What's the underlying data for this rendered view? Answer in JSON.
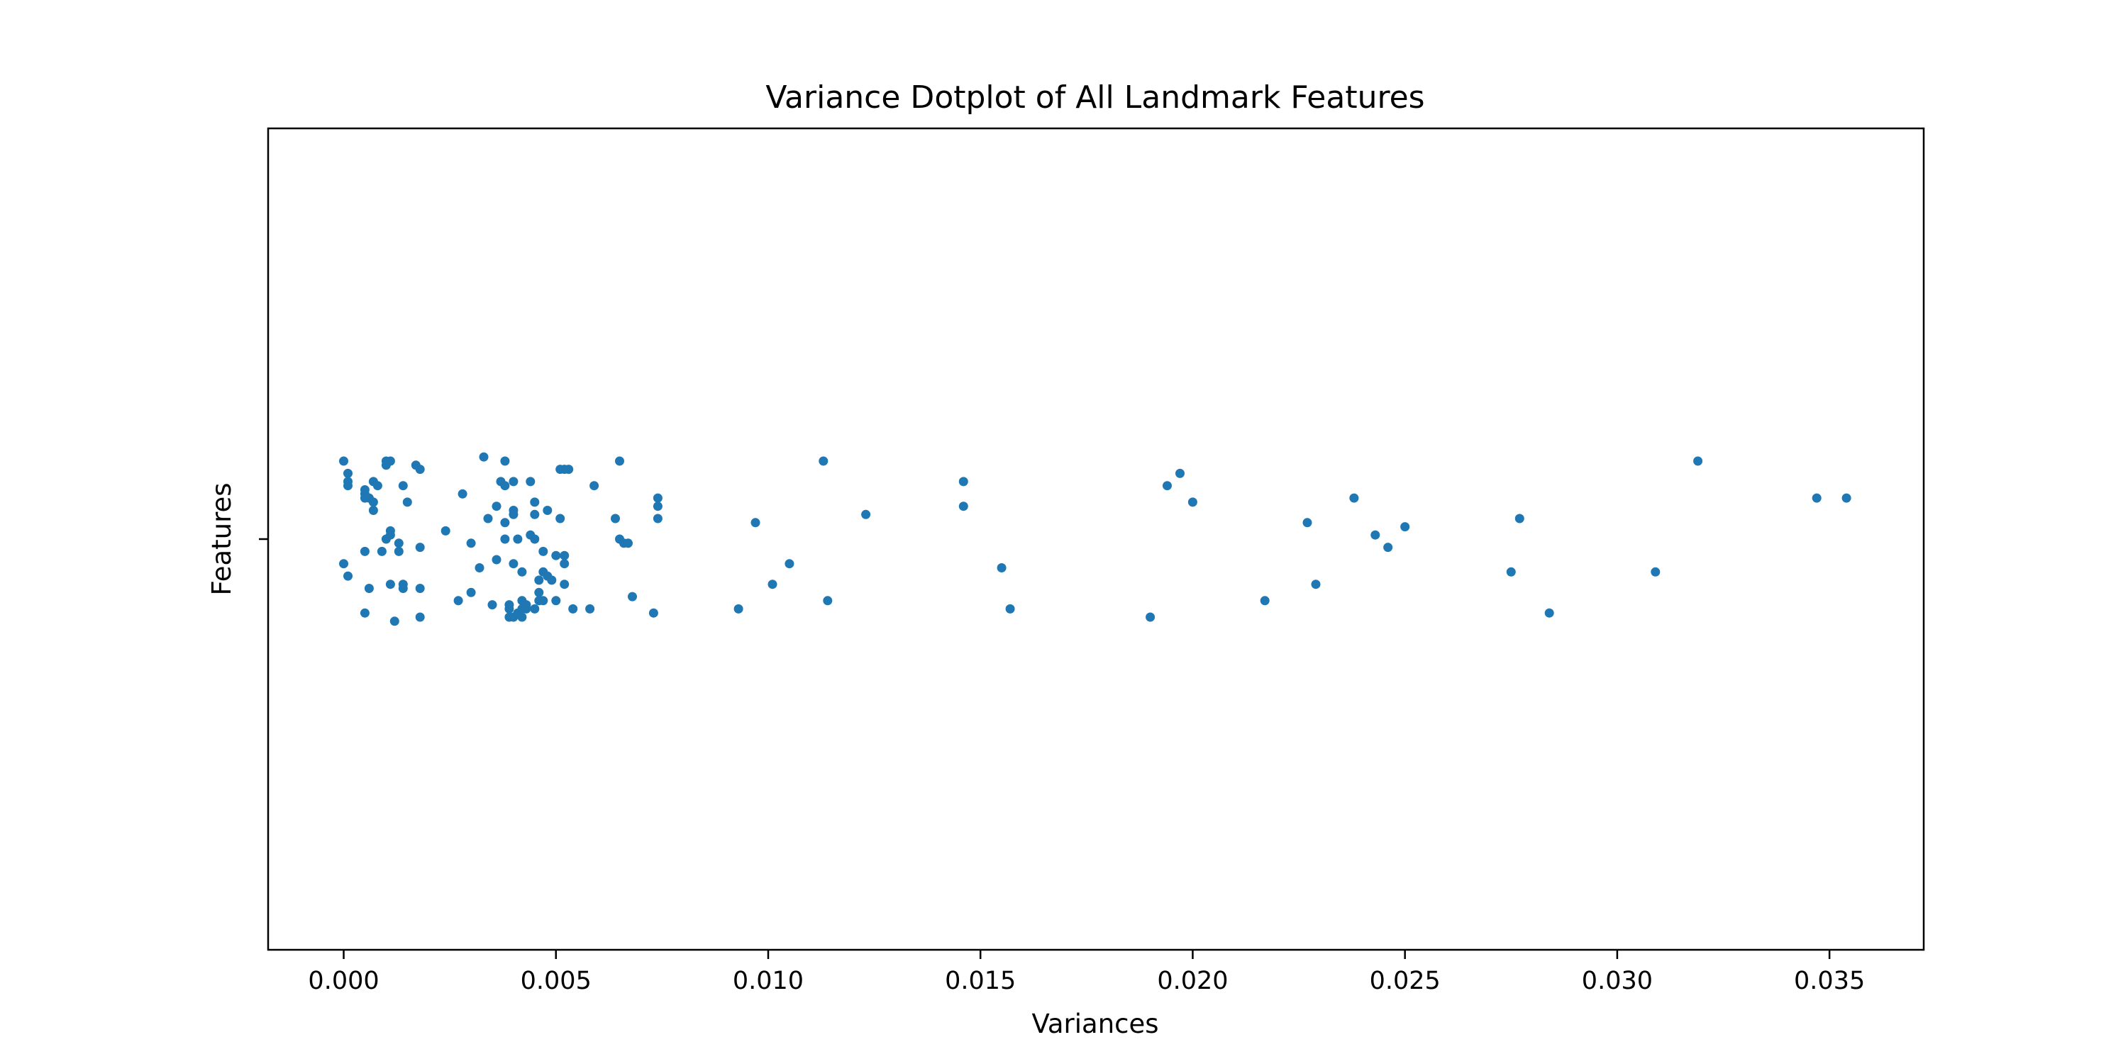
{
  "chart_data": {
    "type": "scatter",
    "title": "Variance Dotplot of All Landmark Features",
    "xlabel": "Variances",
    "ylabel": "Features",
    "xlim": [
      -0.00178,
      0.03722
    ],
    "xticks": [
      0.0,
      0.005,
      0.01,
      0.015,
      0.02,
      0.025,
      0.03,
      0.035
    ],
    "xtick_labels": [
      "0.000",
      "0.005",
      "0.010",
      "0.015",
      "0.020",
      "0.025",
      "0.030",
      "0.035"
    ],
    "ylim": [
      -1,
      1
    ],
    "yticks": [
      0
    ],
    "ytick_labels": [
      ""
    ],
    "grid": false,
    "legend": "none",
    "color": "#1f77b4",
    "points": [
      {
        "x": 0.0,
        "y": 0.19
      },
      {
        "x": 0.0001,
        "y": 0.16
      },
      {
        "x": 0.0001,
        "y": 0.14
      },
      {
        "x": 0.0001,
        "y": 0.13
      },
      {
        "x": 0.0005,
        "y": 0.12
      },
      {
        "x": 0.0005,
        "y": 0.11
      },
      {
        "x": 0.0005,
        "y": 0.1
      },
      {
        "x": 0.0006,
        "y": 0.1
      },
      {
        "x": 0.0007,
        "y": 0.09
      },
      {
        "x": 0.0007,
        "y": 0.07
      },
      {
        "x": 0.0007,
        "y": 0.14
      },
      {
        "x": 0.0008,
        "y": 0.13
      },
      {
        "x": 0.001,
        "y": 0.19
      },
      {
        "x": 0.0011,
        "y": 0.19
      },
      {
        "x": 0.001,
        "y": 0.18
      },
      {
        "x": 0.0011,
        "y": 0.02
      },
      {
        "x": 0.0011,
        "y": 0.01
      },
      {
        "x": 0.001,
        "y": 0.0
      },
      {
        "x": 0.0013,
        "y": -0.01
      },
      {
        "x": 0.0013,
        "y": -0.03
      },
      {
        "x": 0.0009,
        "y": -0.03
      },
      {
        "x": 0.0005,
        "y": -0.03
      },
      {
        "x": 0.0,
        "y": -0.06
      },
      {
        "x": 0.0001,
        "y": -0.09
      },
      {
        "x": 0.0006,
        "y": -0.12
      },
      {
        "x": 0.0011,
        "y": -0.11
      },
      {
        "x": 0.0014,
        "y": -0.12
      },
      {
        "x": 0.0014,
        "y": -0.11
      },
      {
        "x": 0.0018,
        "y": -0.12
      },
      {
        "x": 0.0018,
        "y": -0.02
      },
      {
        "x": 0.0005,
        "y": -0.18
      },
      {
        "x": 0.0012,
        "y": -0.2
      },
      {
        "x": 0.0018,
        "y": -0.19
      },
      {
        "x": 0.0014,
        "y": 0.13
      },
      {
        "x": 0.0015,
        "y": 0.09
      },
      {
        "x": 0.0017,
        "y": 0.18
      },
      {
        "x": 0.0018,
        "y": 0.17
      },
      {
        "x": 0.0024,
        "y": 0.02
      },
      {
        "x": 0.0027,
        "y": -0.15
      },
      {
        "x": 0.0028,
        "y": 0.11
      },
      {
        "x": 0.003,
        "y": -0.01
      },
      {
        "x": 0.003,
        "y": -0.13
      },
      {
        "x": 0.0032,
        "y": -0.07
      },
      {
        "x": 0.0033,
        "y": 0.2
      },
      {
        "x": 0.0034,
        "y": 0.05
      },
      {
        "x": 0.0035,
        "y": -0.16
      },
      {
        "x": 0.0036,
        "y": 0.08
      },
      {
        "x": 0.0036,
        "y": -0.05
      },
      {
        "x": 0.0037,
        "y": 0.14
      },
      {
        "x": 0.0038,
        "y": 0.13
      },
      {
        "x": 0.0038,
        "y": 0.04
      },
      {
        "x": 0.0038,
        "y": 0.0
      },
      {
        "x": 0.0038,
        "y": 0.19
      },
      {
        "x": 0.0039,
        "y": -0.16
      },
      {
        "x": 0.0039,
        "y": -0.17
      },
      {
        "x": 0.0039,
        "y": -0.19
      },
      {
        "x": 0.004,
        "y": -0.19
      },
      {
        "x": 0.004,
        "y": 0.14
      },
      {
        "x": 0.004,
        "y": 0.07
      },
      {
        "x": 0.004,
        "y": 0.06
      },
      {
        "x": 0.004,
        "y": -0.06
      },
      {
        "x": 0.0041,
        "y": 0.0
      },
      {
        "x": 0.0041,
        "y": -0.18
      },
      {
        "x": 0.0042,
        "y": -0.15
      },
      {
        "x": 0.0042,
        "y": -0.08
      },
      {
        "x": 0.0042,
        "y": -0.17
      },
      {
        "x": 0.0042,
        "y": -0.19
      },
      {
        "x": 0.0043,
        "y": -0.17
      },
      {
        "x": 0.0043,
        "y": -0.16
      },
      {
        "x": 0.0044,
        "y": 0.01
      },
      {
        "x": 0.0044,
        "y": 0.14
      },
      {
        "x": 0.0045,
        "y": 0.0
      },
      {
        "x": 0.0045,
        "y": 0.09
      },
      {
        "x": 0.0045,
        "y": 0.06
      },
      {
        "x": 0.0045,
        "y": -0.17
      },
      {
        "x": 0.0046,
        "y": -0.15
      },
      {
        "x": 0.0046,
        "y": -0.13
      },
      {
        "x": 0.0046,
        "y": -0.1
      },
      {
        "x": 0.0047,
        "y": -0.03
      },
      {
        "x": 0.0047,
        "y": -0.08
      },
      {
        "x": 0.0047,
        "y": -0.15
      },
      {
        "x": 0.0048,
        "y": -0.09
      },
      {
        "x": 0.0048,
        "y": 0.07
      },
      {
        "x": 0.0049,
        "y": -0.1
      },
      {
        "x": 0.005,
        "y": -0.04
      },
      {
        "x": 0.005,
        "y": -0.15
      },
      {
        "x": 0.0051,
        "y": 0.05
      },
      {
        "x": 0.0051,
        "y": 0.17
      },
      {
        "x": 0.0052,
        "y": 0.17
      },
      {
        "x": 0.0052,
        "y": -0.04
      },
      {
        "x": 0.0052,
        "y": -0.06
      },
      {
        "x": 0.0052,
        "y": -0.11
      },
      {
        "x": 0.0053,
        "y": 0.17
      },
      {
        "x": 0.0054,
        "y": -0.17
      },
      {
        "x": 0.0058,
        "y": -0.17
      },
      {
        "x": 0.0059,
        "y": 0.13
      },
      {
        "x": 0.0064,
        "y": 0.05
      },
      {
        "x": 0.0065,
        "y": 0.19
      },
      {
        "x": 0.0065,
        "y": 0.0
      },
      {
        "x": 0.0066,
        "y": -0.01
      },
      {
        "x": 0.0067,
        "y": -0.01
      },
      {
        "x": 0.0068,
        "y": -0.14
      },
      {
        "x": 0.0073,
        "y": -0.18
      },
      {
        "x": 0.0074,
        "y": 0.1
      },
      {
        "x": 0.0074,
        "y": 0.08
      },
      {
        "x": 0.0074,
        "y": 0.05
      },
      {
        "x": 0.0093,
        "y": -0.17
      },
      {
        "x": 0.0097,
        "y": 0.04
      },
      {
        "x": 0.0101,
        "y": -0.11
      },
      {
        "x": 0.0105,
        "y": -0.06
      },
      {
        "x": 0.0113,
        "y": 0.19
      },
      {
        "x": 0.0114,
        "y": -0.15
      },
      {
        "x": 0.0123,
        "y": 0.06
      },
      {
        "x": 0.0146,
        "y": 0.14
      },
      {
        "x": 0.0146,
        "y": 0.08
      },
      {
        "x": 0.0155,
        "y": -0.07
      },
      {
        "x": 0.0157,
        "y": -0.17
      },
      {
        "x": 0.019,
        "y": -0.19
      },
      {
        "x": 0.0194,
        "y": 0.13
      },
      {
        "x": 0.0197,
        "y": 0.16
      },
      {
        "x": 0.02,
        "y": 0.09
      },
      {
        "x": 0.0217,
        "y": -0.15
      },
      {
        "x": 0.0227,
        "y": 0.04
      },
      {
        "x": 0.0229,
        "y": -0.11
      },
      {
        "x": 0.0238,
        "y": 0.1
      },
      {
        "x": 0.0243,
        "y": 0.01
      },
      {
        "x": 0.0246,
        "y": -0.02
      },
      {
        "x": 0.025,
        "y": 0.03
      },
      {
        "x": 0.0275,
        "y": -0.08
      },
      {
        "x": 0.0277,
        "y": 0.05
      },
      {
        "x": 0.0284,
        "y": -0.18
      },
      {
        "x": 0.0309,
        "y": -0.08
      },
      {
        "x": 0.0319,
        "y": 0.19
      },
      {
        "x": 0.0347,
        "y": 0.1
      },
      {
        "x": 0.0354,
        "y": 0.1
      }
    ]
  }
}
